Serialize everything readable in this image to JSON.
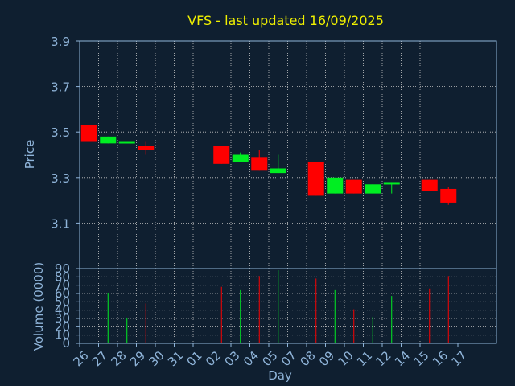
{
  "chart_data": {
    "type": "candlestick",
    "title": "VFS - last updated 16/09/2025",
    "xlabel": "Day",
    "price_panel": {
      "ylabel": "Price",
      "ylim": [
        2.9,
        3.9
      ],
      "yticks": [
        "3.1",
        "3.3",
        "3.5",
        "3.7",
        "3.9"
      ],
      "grid": true
    },
    "volume_panel": {
      "ylabel": "Volume (0000)",
      "ylim": [
        0,
        90
      ],
      "yticks": [
        "0",
        "10",
        "20",
        "30",
        "40",
        "50",
        "60",
        "70",
        "80",
        "90"
      ],
      "grid": true
    },
    "days": [
      "26",
      "27",
      "28",
      "29",
      "30",
      "31",
      "01",
      "02",
      "03",
      "04",
      "05",
      "07",
      "08",
      "09",
      "10",
      "11",
      "12",
      "14",
      "15",
      "16",
      "17"
    ],
    "candles": [
      {
        "day": "26",
        "open": 3.53,
        "close": 3.46,
        "high": 3.53,
        "low": 3.46,
        "volume": 0
      },
      {
        "day": "27",
        "open": 3.45,
        "close": 3.48,
        "high": 3.48,
        "low": 3.45,
        "volume": 61
      },
      {
        "day": "28",
        "open": 3.46,
        "close": 3.46,
        "high": 3.46,
        "low": 3.46,
        "volume": 31
      },
      {
        "day": "29",
        "open": 3.44,
        "close": 3.42,
        "high": 3.46,
        "low": 3.4,
        "volume": 48
      },
      {
        "day": "02",
        "open": 3.44,
        "close": 3.36,
        "high": 3.44,
        "low": 3.36,
        "volume": 68
      },
      {
        "day": "03",
        "open": 3.37,
        "close": 3.4,
        "high": 3.41,
        "low": 3.37,
        "volume": 64
      },
      {
        "day": "04",
        "open": 3.39,
        "close": 3.33,
        "high": 3.42,
        "low": 3.33,
        "volume": 81
      },
      {
        "day": "05",
        "open": 3.32,
        "close": 3.34,
        "high": 3.4,
        "low": 3.32,
        "volume": 88
      },
      {
        "day": "08",
        "open": 3.37,
        "close": 3.22,
        "high": 3.37,
        "low": 3.22,
        "volume": 78
      },
      {
        "day": "09",
        "open": 3.23,
        "close": 3.3,
        "high": 3.3,
        "low": 3.23,
        "volume": 64
      },
      {
        "day": "10",
        "open": 3.29,
        "close": 3.23,
        "high": 3.29,
        "low": 3.23,
        "volume": 41
      },
      {
        "day": "11",
        "open": 3.23,
        "close": 3.27,
        "high": 3.27,
        "low": 3.23,
        "volume": 32
      },
      {
        "day": "12",
        "open": 3.27,
        "close": 3.28,
        "high": 3.28,
        "low": 3.23,
        "volume": 57
      },
      {
        "day": "15",
        "open": 3.29,
        "close": 3.24,
        "high": 3.29,
        "low": 3.24,
        "volume": 66
      },
      {
        "day": "16",
        "open": 3.25,
        "close": 3.19,
        "high": 3.26,
        "low": 3.18,
        "volume": 81
      }
    ],
    "colors": {
      "background": "#0f1f30",
      "axis": "#8fb4d9",
      "grid": "#c8c8c8",
      "title": "#f0f000",
      "up": "#00ee22",
      "down": "#ff0000"
    }
  }
}
